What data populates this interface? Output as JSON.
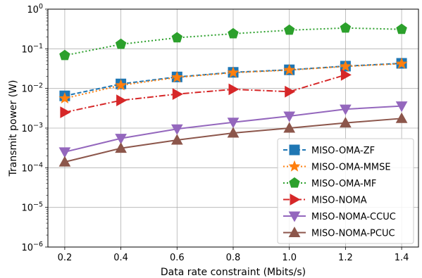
{
  "chart_data": {
    "type": "line",
    "title": "",
    "xlabel": "Data rate constraint (Mbits/s)",
    "ylabel": "Transmit power (W)",
    "xlim": [
      0.14,
      1.46
    ],
    "ylim": [
      1e-06,
      1
    ],
    "yscale": "log",
    "grid": true,
    "legend_position": "lower-right",
    "x_ticks": [
      0.2,
      0.4,
      0.6,
      0.8,
      1.0,
      1.2,
      1.4
    ],
    "x_tick_labels": [
      "0.2",
      "0.4",
      "0.6",
      "0.8",
      "1.0",
      "1.2",
      "1.4"
    ],
    "y_ticks": [
      1e-06,
      1e-05,
      0.0001,
      0.001,
      0.01,
      0.1,
      1
    ],
    "y_tick_labels": [
      {
        "base": "10",
        "exp": "−6"
      },
      {
        "base": "10",
        "exp": "−5"
      },
      {
        "base": "10",
        "exp": "−4"
      },
      {
        "base": "10",
        "exp": "−3"
      },
      {
        "base": "10",
        "exp": "−2"
      },
      {
        "base": "10",
        "exp": "−1"
      },
      {
        "base": "10",
        "exp": "0"
      }
    ],
    "series": [
      {
        "name": "MISO-OMA-ZF",
        "color": "#1f77b4",
        "dash": "6,3",
        "marker": "square",
        "x": [
          0.2,
          0.4,
          0.6,
          0.8,
          1.0,
          1.2,
          1.4
        ],
        "y": [
          0.0065,
          0.013,
          0.0195,
          0.0255,
          0.0295,
          0.0365,
          0.043
        ]
      },
      {
        "name": "MISO-OMA-MMSE",
        "color": "#ff7f0e",
        "dash": "2,3",
        "marker": "star",
        "x": [
          0.2,
          0.4,
          0.6,
          0.8,
          1.0,
          1.2,
          1.4
        ],
        "y": [
          0.0056,
          0.012,
          0.019,
          0.025,
          0.029,
          0.036,
          0.042
        ]
      },
      {
        "name": "MISO-OMA-MF",
        "color": "#2ca02c",
        "dash": "2,3",
        "marker": "pentagon",
        "x": [
          0.2,
          0.4,
          0.6,
          0.8,
          1.0,
          1.2,
          1.4
        ],
        "y": [
          0.068,
          0.13,
          0.19,
          0.24,
          0.295,
          0.335,
          0.31
        ]
      },
      {
        "name": "MISO-NOMA",
        "color": "#d62728",
        "dash": "9,3,2,3",
        "marker": "triangle-right",
        "x": [
          0.2,
          0.4,
          0.6,
          0.8,
          1.0,
          1.2
        ],
        "y": [
          0.0025,
          0.005,
          0.0072,
          0.0095,
          0.0083,
          0.022
        ]
      },
      {
        "name": "MISO-NOMA-CCUC",
        "color": "#9467bd",
        "dash": "",
        "marker": "triangle-down",
        "x": [
          0.2,
          0.4,
          0.6,
          0.8,
          1.0,
          1.2,
          1.4
        ],
        "y": [
          0.00025,
          0.00055,
          0.00095,
          0.0014,
          0.002,
          0.003,
          0.0036
        ]
      },
      {
        "name": "MISO-NOMA-PCUC",
        "color": "#8c564b",
        "dash": "",
        "marker": "triangle-up",
        "x": [
          0.2,
          0.4,
          0.6,
          0.8,
          1.0,
          1.2,
          1.4
        ],
        "y": [
          0.00014,
          0.00031,
          0.0005,
          0.00075,
          0.001,
          0.00135,
          0.00175
        ]
      }
    ]
  }
}
